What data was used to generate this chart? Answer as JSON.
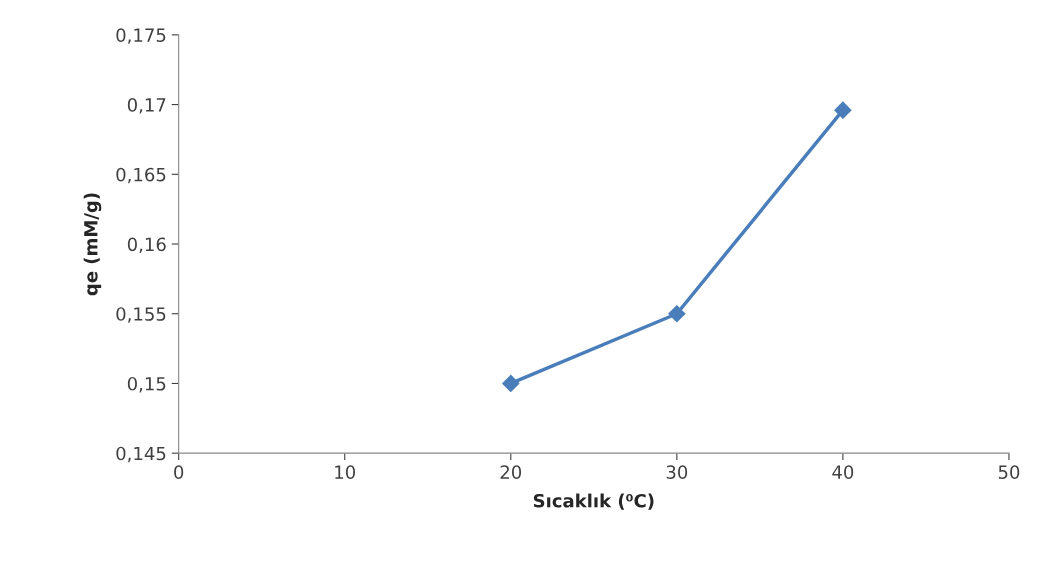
{
  "chart_data": {
    "type": "line",
    "xlabel": "Sıcaklık (⁰C)",
    "ylabel": "qe (mM/g)",
    "x": [
      20,
      30,
      40
    ],
    "series": [
      {
        "color": "#4a7ebb",
        "values": [
          0.15,
          0.155,
          0.1696
        ]
      }
    ],
    "xlim": [
      0,
      50
    ],
    "xticks": [
      0,
      10,
      20,
      30,
      40,
      50
    ],
    "ylim": [
      0.145,
      0.175
    ],
    "yticks": [
      {
        "value": 0.145,
        "label": "0,145"
      },
      {
        "value": 0.15,
        "label": "0,15"
      },
      {
        "value": 0.155,
        "label": "0,155"
      },
      {
        "value": 0.16,
        "label": "0,16"
      },
      {
        "value": 0.165,
        "label": "0,165"
      },
      {
        "value": 0.17,
        "label": "0,17"
      },
      {
        "value": 0.175,
        "label": "0,175"
      }
    ],
    "marker": "diamond",
    "line_style": "solid",
    "grid": false,
    "legend": false
  }
}
